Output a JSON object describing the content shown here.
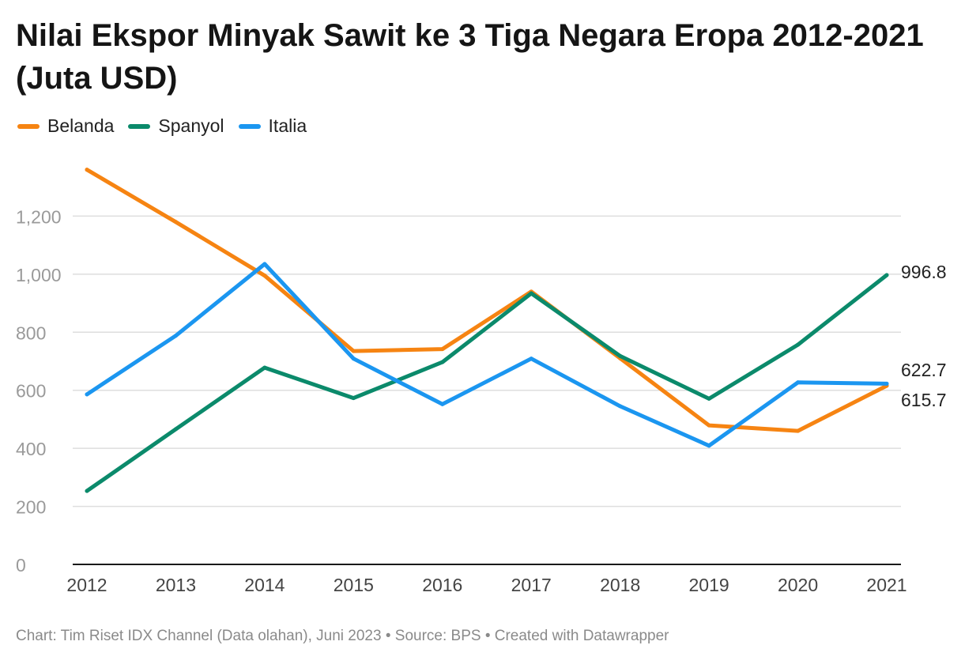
{
  "title": "Nilai Ekspor Minyak Sawit ke 3 Tiga Negara Eropa 2012-2021 (Juta USD)",
  "footer": "Chart: Tim Riset IDX Channel (Data olahan), Juni 2023 • Source: BPS • Created with Datawrapper",
  "colors": {
    "Belanda": "#f68412",
    "Spanyol": "#0b8a6b",
    "Italia": "#1b96f0",
    "grid": "#dedede",
    "axis_text": "#9a9a9a"
  },
  "chart_data": {
    "type": "line",
    "title": "Nilai Ekspor Minyak Sawit ke 3 Tiga Negara Eropa 2012-2021 (Juta USD)",
    "x": [
      "2012",
      "2013",
      "2014",
      "2015",
      "2016",
      "2017",
      "2018",
      "2019",
      "2020",
      "2021"
    ],
    "ylim": [
      0,
      1400
    ],
    "yticks": [
      0,
      200,
      400,
      600,
      800,
      1000,
      1200
    ],
    "ytick_labels": [
      "0",
      "200",
      "400",
      "600",
      "800",
      "1,000",
      "1,200"
    ],
    "grid": true,
    "legend": "top-left",
    "series": [
      {
        "name": "Belanda",
        "color": "#f68412",
        "values": [
          1360,
          1180,
          995,
          735,
          742,
          940,
          710,
          479,
          460,
          615.7
        ]
      },
      {
        "name": "Spanyol",
        "color": "#0b8a6b",
        "values": [
          253,
          466,
          678,
          573,
          697,
          934,
          718,
          571,
          757,
          996.8
        ]
      },
      {
        "name": "Italia",
        "color": "#1b96f0",
        "values": [
          586,
          788,
          1035,
          709,
          552,
          709,
          545,
          409,
          627,
          622.7
        ]
      }
    ],
    "end_labels": [
      {
        "series": "Spanyol",
        "text": "996.8"
      },
      {
        "series": "Italia",
        "text": "622.7"
      },
      {
        "series": "Belanda",
        "text": "615.7"
      }
    ]
  }
}
